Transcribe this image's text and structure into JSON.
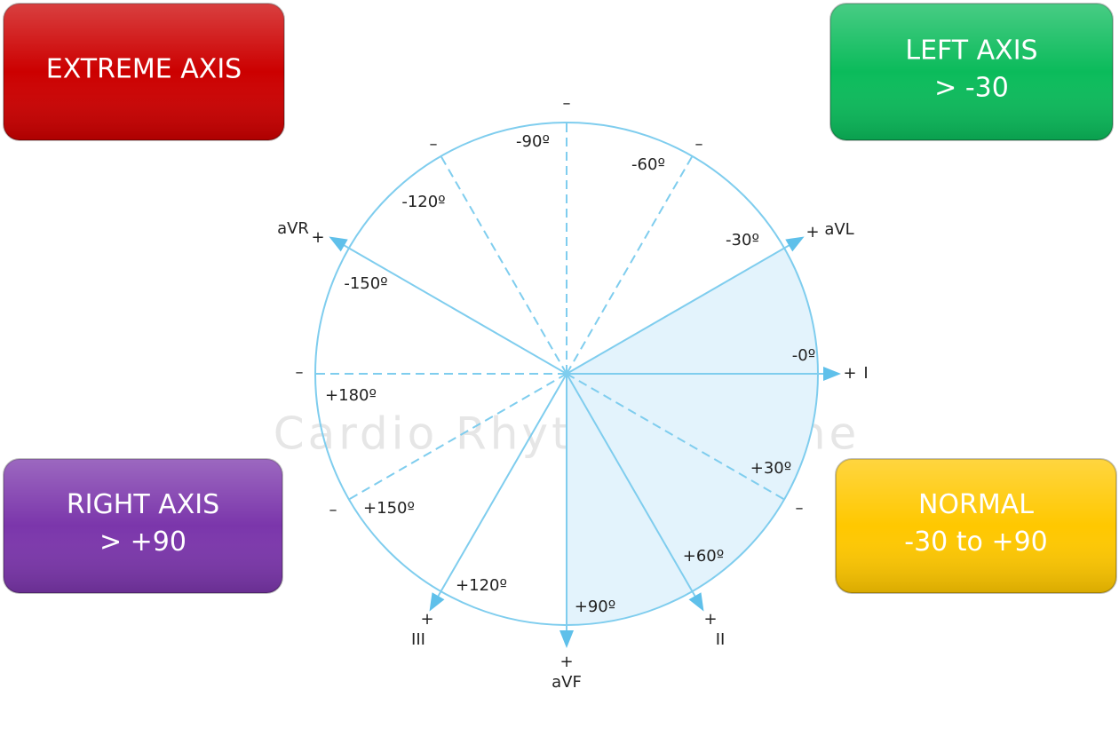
{
  "boxes": [
    {
      "lines": [
        "EXTREME AXIS"
      ]
    },
    {
      "lines": [
        "LEFT AXIS",
        "> -30"
      ]
    },
    {
      "lines": [
        "RIGHT AXIS",
        "> +90"
      ]
    },
    {
      "lines": [
        "NORMAL",
        "-30 to +90"
      ]
    }
  ],
  "angle_labels": [
    "-90º",
    "-60º",
    "-120º",
    "-30º",
    "-150º",
    "-0º",
    "+180º",
    "+30º",
    "+150º",
    "+60º",
    "+120º",
    "+90º"
  ],
  "leads": [
    {
      "name": "aVR",
      "sign": "+"
    },
    {
      "name": "aVL",
      "sign": "+"
    },
    {
      "name": "I",
      "sign": "+"
    },
    {
      "name": "II",
      "sign": "+"
    },
    {
      "name": "aVF",
      "sign": "+"
    },
    {
      "name": "III",
      "sign": "+"
    }
  ],
  "negative_ends": [
    "–",
    "–",
    "–",
    "–",
    "–",
    "–"
  ],
  "watermark": "Cardio Rhythms Online"
}
